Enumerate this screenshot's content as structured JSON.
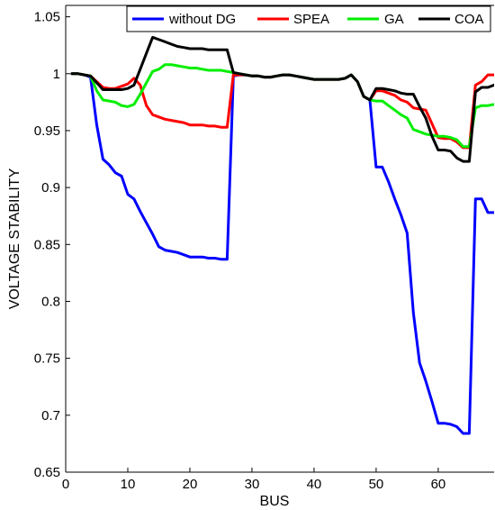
{
  "chart_data": {
    "type": "line",
    "title": "",
    "xlabel": "BUS",
    "ylabel": "VOLTAGE STABILITY",
    "xlim": [
      0,
      69
    ],
    "ylim": [
      0.65,
      1.06
    ],
    "xticks": [
      0,
      10,
      20,
      30,
      40,
      50,
      60
    ],
    "xtick_labels": [
      "0",
      "10",
      "20",
      "30",
      "40",
      "50",
      "60"
    ],
    "yticks": [
      0.65,
      0.7,
      0.75,
      0.8,
      0.85,
      0.9,
      0.95,
      1,
      1.05
    ],
    "ytick_labels": [
      "0.65",
      "0.7",
      "0.75",
      "0.8",
      "0.85",
      "0.9",
      "0.95",
      "1",
      "1.05"
    ],
    "grid": false,
    "legend_position": "top",
    "series": [
      {
        "name": "without DG",
        "color": "#0000ff",
        "x": [
          1,
          2,
          3,
          4,
          5,
          6,
          7,
          8,
          9,
          10,
          11,
          12,
          13,
          14,
          15,
          16,
          17,
          18,
          19,
          20,
          21,
          22,
          23,
          24,
          25,
          26,
          27,
          28,
          29,
          30,
          31,
          32,
          33,
          34,
          35,
          36,
          37,
          38,
          39,
          40,
          41,
          42,
          43,
          44,
          45,
          46,
          47,
          48,
          49,
          50,
          51,
          52,
          53,
          54,
          55,
          56,
          57,
          58,
          59,
          60,
          61,
          62,
          63,
          64,
          65,
          66,
          67,
          68,
          69
        ],
        "y": [
          1,
          1,
          0.999,
          0.997,
          0.955,
          0.925,
          0.92,
          0.913,
          0.91,
          0.894,
          0.89,
          0.879,
          0.869,
          0.859,
          0.848,
          0.845,
          0.844,
          0.843,
          0.841,
          0.839,
          0.839,
          0.839,
          0.838,
          0.838,
          0.837,
          0.837,
          0.998,
          0.999,
          0.999,
          0.998,
          0.998,
          0.997,
          0.997,
          0.998,
          0.999,
          0.999,
          0.998,
          0.997,
          0.996,
          0.995,
          0.995,
          0.995,
          0.995,
          0.995,
          0.996,
          0.999,
          0.993,
          0.98,
          0.977,
          0.918,
          0.918,
          0.905,
          0.89,
          0.876,
          0.86,
          0.79,
          0.746,
          0.73,
          0.712,
          0.693,
          0.693,
          0.692,
          0.69,
          0.684,
          0.684,
          0.89,
          0.89,
          0.878,
          0.878
        ]
      },
      {
        "name": "SPEA",
        "color": "#ff0000",
        "x": [
          1,
          2,
          3,
          4,
          5,
          6,
          7,
          8,
          9,
          10,
          11,
          12,
          13,
          14,
          15,
          16,
          17,
          18,
          19,
          20,
          21,
          22,
          23,
          24,
          25,
          26,
          27,
          28,
          29,
          30,
          31,
          32,
          33,
          34,
          35,
          36,
          37,
          38,
          39,
          40,
          41,
          42,
          43,
          44,
          45,
          46,
          47,
          48,
          49,
          50,
          51,
          52,
          53,
          54,
          55,
          56,
          57,
          58,
          59,
          60,
          61,
          62,
          63,
          64,
          65,
          66,
          67,
          68,
          69
        ],
        "y": [
          1,
          1,
          0.999,
          0.998,
          0.993,
          0.988,
          0.987,
          0.987,
          0.989,
          0.991,
          0.996,
          0.99,
          0.972,
          0.964,
          0.962,
          0.96,
          0.959,
          0.958,
          0.957,
          0.955,
          0.955,
          0.955,
          0.954,
          0.954,
          0.953,
          0.953,
          0.999,
          0.999,
          0.999,
          0.998,
          0.998,
          0.997,
          0.997,
          0.998,
          0.999,
          0.999,
          0.998,
          0.997,
          0.996,
          0.995,
          0.995,
          0.995,
          0.995,
          0.995,
          0.996,
          0.999,
          0.993,
          0.98,
          0.977,
          0.985,
          0.985,
          0.983,
          0.981,
          0.977,
          0.975,
          0.97,
          0.969,
          0.968,
          0.956,
          0.944,
          0.943,
          0.943,
          0.94,
          0.935,
          0.935,
          0.99,
          0.993,
          0.999,
          0.999
        ]
      },
      {
        "name": "GA",
        "color": "#00ee00",
        "x": [
          1,
          2,
          3,
          4,
          5,
          6,
          7,
          8,
          9,
          10,
          11,
          12,
          13,
          14,
          15,
          16,
          17,
          18,
          19,
          20,
          21,
          22,
          23,
          24,
          25,
          26,
          27,
          28,
          29,
          30,
          31,
          32,
          33,
          34,
          35,
          36,
          37,
          38,
          39,
          40,
          41,
          42,
          43,
          44,
          45,
          46,
          47,
          48,
          49,
          50,
          51,
          52,
          53,
          54,
          55,
          56,
          57,
          58,
          59,
          60,
          61,
          62,
          63,
          64,
          65,
          66,
          67,
          68,
          69
        ],
        "y": [
          1,
          1,
          0.999,
          0.998,
          0.985,
          0.977,
          0.976,
          0.975,
          0.972,
          0.971,
          0.973,
          0.982,
          0.992,
          1.002,
          1.004,
          1.008,
          1.008,
          1.007,
          1.006,
          1.005,
          1.005,
          1.004,
          1.003,
          1.003,
          1.003,
          1.002,
          1.001,
          1,
          0.999,
          0.998,
          0.998,
          0.997,
          0.997,
          0.998,
          0.999,
          0.999,
          0.998,
          0.997,
          0.996,
          0.995,
          0.995,
          0.995,
          0.995,
          0.995,
          0.996,
          0.999,
          0.993,
          0.98,
          0.977,
          0.976,
          0.976,
          0.972,
          0.968,
          0.964,
          0.961,
          0.951,
          0.949,
          0.947,
          0.946,
          0.945,
          0.945,
          0.944,
          0.942,
          0.936,
          0.936,
          0.97,
          0.972,
          0.972,
          0.973
        ]
      },
      {
        "name": "COA",
        "color": "#000000",
        "x": [
          1,
          2,
          3,
          4,
          5,
          6,
          7,
          8,
          9,
          10,
          11,
          12,
          13,
          14,
          15,
          16,
          17,
          18,
          19,
          20,
          21,
          22,
          23,
          24,
          25,
          26,
          27,
          28,
          29,
          30,
          31,
          32,
          33,
          34,
          35,
          36,
          37,
          38,
          39,
          40,
          41,
          42,
          43,
          44,
          45,
          46,
          47,
          48,
          49,
          50,
          51,
          52,
          53,
          54,
          55,
          56,
          57,
          58,
          59,
          60,
          61,
          62,
          63,
          64,
          65,
          66,
          67,
          68,
          69
        ],
        "y": [
          1,
          1,
          0.999,
          0.998,
          0.992,
          0.986,
          0.986,
          0.986,
          0.986,
          0.987,
          0.99,
          1.004,
          1.018,
          1.032,
          1.03,
          1.028,
          1.026,
          1.024,
          1.023,
          1.022,
          1.022,
          1.022,
          1.021,
          1.021,
          1.021,
          1.021,
          1.001,
          1,
          0.999,
          0.998,
          0.998,
          0.997,
          0.997,
          0.998,
          0.999,
          0.999,
          0.998,
          0.997,
          0.996,
          0.995,
          0.995,
          0.995,
          0.995,
          0.995,
          0.996,
          0.999,
          0.993,
          0.98,
          0.977,
          0.987,
          0.987,
          0.986,
          0.985,
          0.983,
          0.982,
          0.982,
          0.971,
          0.961,
          0.945,
          0.933,
          0.933,
          0.932,
          0.926,
          0.923,
          0.923,
          0.984,
          0.988,
          0.988,
          0.99
        ]
      }
    ]
  }
}
